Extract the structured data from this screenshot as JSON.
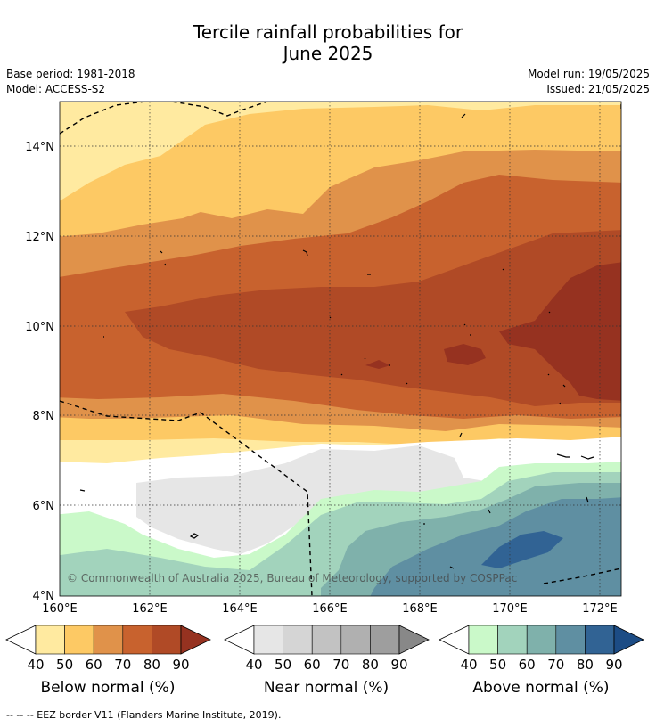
{
  "title": {
    "line1": "Tercile rainfall probabilities for",
    "line2": "June 2025"
  },
  "meta": {
    "base_period": "Base period: 1981-2018",
    "model": "Model: ACCESS-S2",
    "model_run": "Model run: 19/05/2025",
    "issued": "Issued: 21/05/2025"
  },
  "map": {
    "lat_ticks": [
      "14°N",
      "12°N",
      "10°N",
      "8°N",
      "6°N",
      "4°N"
    ],
    "lon_ticks": [
      "160°E",
      "162°E",
      "164°E",
      "166°E",
      "168°E",
      "170°E",
      "172°E"
    ],
    "copyright": "© Commonwealth of Australia 2025, Bureau of Meteorology, supported by COSPPac",
    "colors": {
      "below": [
        "#ffeaa0",
        "#fdc964",
        "#e0924a",
        "#c8622e",
        "#b04a26",
        "#963220"
      ],
      "near": [
        "#e6e6e6",
        "#d5d5d5",
        "#c2c2c2",
        "#b0b0b0",
        "#9e9e9e",
        "#888888"
      ],
      "above": [
        "#caf9c9",
        "#a2d3bc",
        "#7fb1ab",
        "#5f8fa2",
        "#316394",
        "#1c4c85"
      ]
    }
  },
  "colorbars": [
    {
      "label": "Below normal (%)",
      "ticks": [
        "40",
        "50",
        "60",
        "70",
        "80",
        "90"
      ],
      "colors": [
        "#ffeaa0",
        "#fdc964",
        "#e0924a",
        "#c8622e",
        "#b04a26",
        "#963220"
      ]
    },
    {
      "label": "Near normal (%)",
      "ticks": [
        "40",
        "50",
        "60",
        "70",
        "80",
        "90"
      ],
      "colors": [
        "#e6e6e6",
        "#d5d5d5",
        "#c2c2c2",
        "#b0b0b0",
        "#9e9e9e",
        "#888888"
      ]
    },
    {
      "label": "Above normal (%)",
      "ticks": [
        "40",
        "50",
        "60",
        "70",
        "80",
        "90"
      ],
      "colors": [
        "#caf9c9",
        "#a2d3bc",
        "#7fb1ab",
        "#5f8fa2",
        "#316394",
        "#1c4c85"
      ]
    }
  ],
  "footnote": "--  --  -- EEZ border V11 (Flanders Marine Institute, 2019)."
}
